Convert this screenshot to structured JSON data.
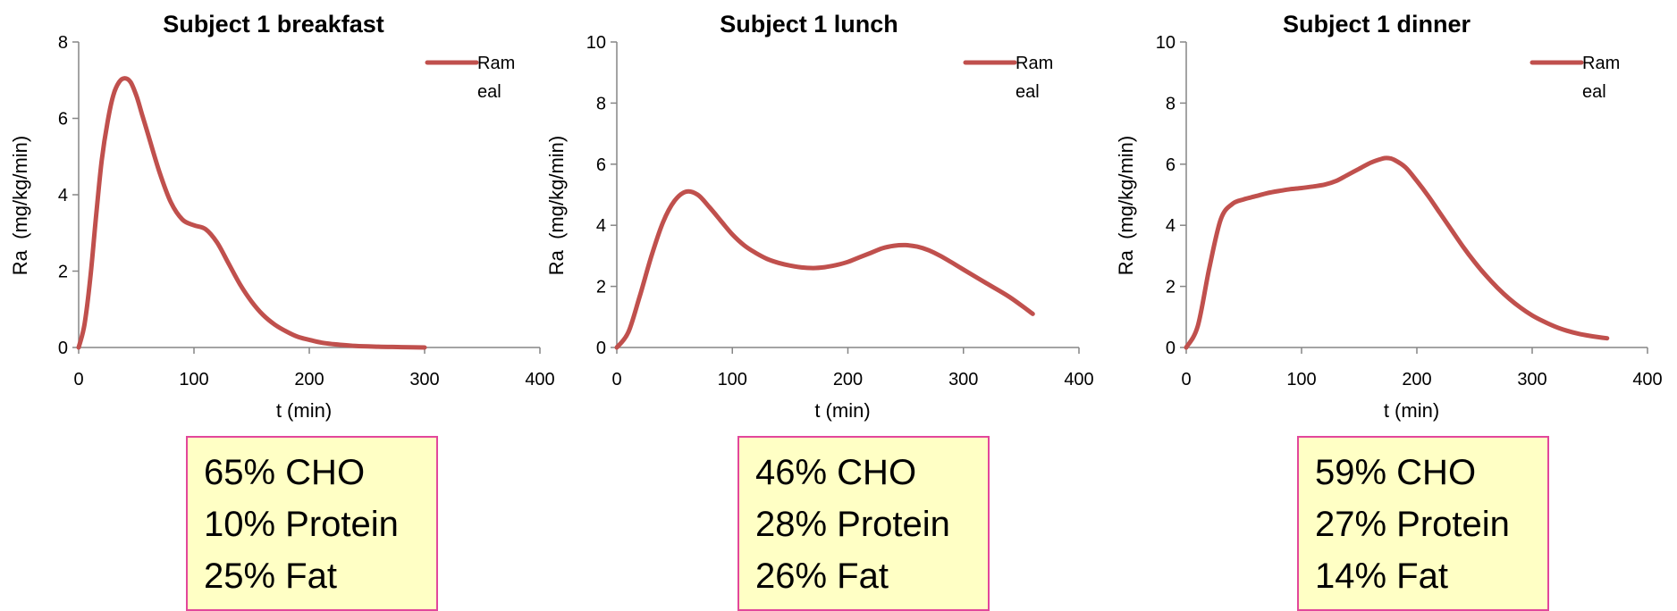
{
  "chart_data": [
    {
      "type": "line",
      "title": "Subject 1 breakfast",
      "xlabel": "t (min)",
      "ylabel": "Ra  (mg/kg/min)",
      "xlim": [
        0,
        400
      ],
      "ylim": [
        0,
        8
      ],
      "xticks": [
        "0",
        "100",
        "200",
        "300",
        "400"
      ],
      "yticks": [
        "0",
        "2",
        "4",
        "6",
        "8"
      ],
      "legend": [
        "Ram",
        "eal"
      ],
      "legend_position": "top-right",
      "color": "#c0504d",
      "series": [
        {
          "x": [
            0,
            5,
            10,
            15,
            20,
            25,
            30,
            35,
            40,
            45,
            50,
            55,
            60,
            70,
            80,
            90,
            100,
            110,
            120,
            130,
            140,
            150,
            160,
            170,
            180,
            190,
            200,
            210,
            220,
            240,
            260,
            280,
            300
          ],
          "y": [
            0,
            0.6,
            1.8,
            3.4,
            4.9,
            5.9,
            6.6,
            6.95,
            7.05,
            6.95,
            6.6,
            6.1,
            5.6,
            4.6,
            3.8,
            3.35,
            3.2,
            3.1,
            2.75,
            2.2,
            1.65,
            1.2,
            0.85,
            0.6,
            0.42,
            0.28,
            0.2,
            0.13,
            0.09,
            0.04,
            0.02,
            0.01,
            0
          ]
        }
      ]
    },
    {
      "type": "line",
      "title": "Subject 1 lunch",
      "xlabel": "t (min)",
      "ylabel": "Ra  (mg/kg/min)",
      "xlim": [
        0,
        400
      ],
      "ylim": [
        0,
        10
      ],
      "xticks": [
        "0",
        "100",
        "200",
        "300",
        "400"
      ],
      "yticks": [
        "0",
        "2",
        "4",
        "6",
        "8",
        "10"
      ],
      "legend": [
        "Ram",
        "eal"
      ],
      "legend_position": "top-right",
      "color": "#c0504d",
      "series": [
        {
          "x": [
            0,
            10,
            20,
            30,
            40,
            50,
            60,
            70,
            80,
            90,
            100,
            110,
            120,
            130,
            140,
            150,
            160,
            170,
            180,
            190,
            200,
            210,
            220,
            230,
            240,
            250,
            260,
            270,
            280,
            290,
            300,
            320,
            340,
            360
          ],
          "y": [
            0,
            0.5,
            1.7,
            3.0,
            4.1,
            4.8,
            5.1,
            5.0,
            4.6,
            4.15,
            3.7,
            3.35,
            3.1,
            2.9,
            2.77,
            2.68,
            2.62,
            2.6,
            2.63,
            2.7,
            2.8,
            2.95,
            3.1,
            3.25,
            3.33,
            3.35,
            3.3,
            3.18,
            3.0,
            2.78,
            2.55,
            2.1,
            1.65,
            1.1
          ]
        }
      ]
    },
    {
      "type": "line",
      "title": "Subject 1 dinner",
      "xlabel": "t (min)",
      "ylabel": "Ra  (mg/kg/min)",
      "xlim": [
        0,
        400
      ],
      "ylim": [
        0,
        10
      ],
      "xticks": [
        "0",
        "100",
        "200",
        "300",
        "400"
      ],
      "yticks": [
        "0",
        "2",
        "4",
        "6",
        "8",
        "10"
      ],
      "legend": [
        "Ram",
        "eal"
      ],
      "legend_position": "top-right",
      "color": "#c0504d",
      "series": [
        {
          "x": [
            0,
            10,
            20,
            30,
            40,
            50,
            60,
            70,
            80,
            90,
            100,
            110,
            120,
            130,
            140,
            150,
            160,
            170,
            175,
            180,
            190,
            200,
            210,
            220,
            230,
            240,
            250,
            260,
            270,
            280,
            290,
            300,
            310,
            320,
            330,
            340,
            350,
            365
          ],
          "y": [
            0,
            0.7,
            2.6,
            4.2,
            4.7,
            4.85,
            4.95,
            5.05,
            5.12,
            5.18,
            5.22,
            5.27,
            5.33,
            5.45,
            5.65,
            5.85,
            6.05,
            6.18,
            6.2,
            6.15,
            5.9,
            5.45,
            4.95,
            4.4,
            3.85,
            3.3,
            2.8,
            2.35,
            1.95,
            1.6,
            1.3,
            1.05,
            0.85,
            0.68,
            0.55,
            0.45,
            0.38,
            0.3
          ]
        }
      ]
    }
  ],
  "macros": [
    {
      "cho": "65% CHO",
      "protein": "10% Protein",
      "fat": "25% Fat"
    },
    {
      "cho": "46% CHO",
      "protein": "28% Protein",
      "fat": "26% Fat"
    },
    {
      "cho": "59% CHO",
      "protein": "27% Protein",
      "fat": "14% Fat"
    }
  ]
}
